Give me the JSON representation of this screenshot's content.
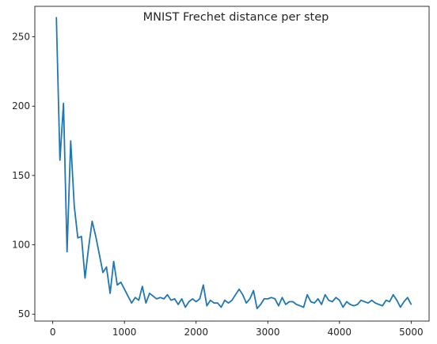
{
  "chart_data": {
    "type": "line",
    "title": "MNIST Frechet distance per step",
    "xlabel": "",
    "ylabel": "",
    "xlim": [
      -250,
      5250
    ],
    "ylim": [
      45,
      272
    ],
    "x_ticks": [
      0,
      1000,
      2000,
      3000,
      4000,
      5000
    ],
    "x_tick_labels": [
      "0",
      "1000",
      "2000",
      "3000",
      "4000",
      "5000"
    ],
    "y_ticks": [
      50,
      100,
      150,
      200,
      250
    ],
    "y_tick_labels": [
      "50",
      "100",
      "150",
      "200",
      "250"
    ],
    "grid": false,
    "legend": "none",
    "series": [
      {
        "color": "#1f77b4",
        "x": [
          50,
          100,
          150,
          200,
          250,
          300,
          350,
          400,
          450,
          500,
          550,
          600,
          650,
          700,
          750,
          800,
          850,
          900,
          950,
          1000,
          1050,
          1100,
          1150,
          1200,
          1250,
          1300,
          1350,
          1400,
          1450,
          1500,
          1550,
          1600,
          1650,
          1700,
          1750,
          1800,
          1850,
          1900,
          1950,
          2000,
          2050,
          2100,
          2150,
          2200,
          2250,
          2300,
          2350,
          2400,
          2450,
          2500,
          2550,
          2600,
          2650,
          2700,
          2750,
          2800,
          2850,
          2900,
          2950,
          3000,
          3050,
          3100,
          3150,
          3200,
          3250,
          3300,
          3350,
          3400,
          3450,
          3500,
          3550,
          3600,
          3650,
          3700,
          3750,
          3800,
          3850,
          3900,
          3950,
          4000,
          4050,
          4100,
          4150,
          4200,
          4250,
          4300,
          4350,
          4400,
          4450,
          4500,
          4550,
          4600,
          4650,
          4700,
          4750,
          4800,
          4850,
          4900,
          4950,
          5000
        ],
        "y": [
          264,
          161,
          202,
          95,
          175,
          128,
          105,
          106,
          76,
          98,
          117,
          106,
          93,
          80,
          84,
          65,
          88,
          71,
          73,
          68,
          63,
          58,
          62,
          60,
          70,
          58,
          65,
          63,
          61,
          62,
          61,
          64,
          60,
          61,
          57,
          61,
          55,
          59,
          61,
          59,
          61,
          71,
          56,
          60,
          58,
          58,
          55,
          60,
          58,
          60,
          64,
          68,
          64,
          58,
          61,
          67,
          54,
          57,
          61,
          61,
          62,
          61,
          56,
          62,
          57,
          59,
          59,
          57,
          56,
          55,
          64,
          59,
          58,
          61,
          57,
          64,
          60,
          59,
          62,
          60,
          55,
          59,
          57,
          56,
          57,
          60,
          59,
          58,
          60,
          58,
          57,
          56,
          60,
          59,
          64,
          60,
          55,
          59,
          62,
          57
        ]
      }
    ]
  }
}
